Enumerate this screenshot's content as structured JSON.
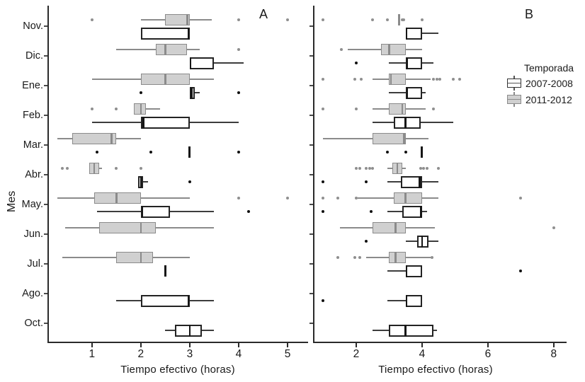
{
  "y_axis_label": "Mes",
  "x_axis_label": "Tiempo efectivo (horas)",
  "legend": {
    "title": "Temporada",
    "items": [
      {
        "label": "2007-2008",
        "fill": "#ffffff",
        "stroke": "#2b2b2b"
      },
      {
        "label": "2011-2012",
        "fill": "#d0d0d0",
        "stroke": "#8b8b8b"
      }
    ]
  },
  "colors": {
    "axis": "#2a2a2a",
    "text": "#1a1a1a",
    "gray_fill": "#d0d0d0",
    "gray_stroke": "#8b8b8b",
    "white_fill": "#ffffff",
    "white_stroke": "#232323"
  },
  "chart_data": [
    {
      "type": "boxplot",
      "orientation": "horizontal",
      "panel_label": "A",
      "xlabel": "Tiempo efectivo (horas)",
      "ylabel": "Mes",
      "x_ticks": [
        1,
        2,
        3,
        4,
        5
      ],
      "xlim": [
        0.09,
        5.42
      ],
      "grid": false,
      "categories": [
        "Nov.",
        "Dic.",
        "Ene.",
        "Feb.",
        "Mar.",
        "Abr.",
        "May.",
        "Jun.",
        "Jul.",
        "Ago.",
        "Oct."
      ],
      "series": [
        {
          "name": "2011-2012",
          "fill": "#d0d0d0",
          "stroke": "#8b8b8b",
          "dot": "#8f8f8f",
          "boxes": [
            {
              "lo": 2.0,
              "q1": 2.5,
              "med": 2.95,
              "q3": 3.0,
              "hi": 3.45,
              "out": [
                1.0,
                4.0,
                5.0
              ]
            },
            {
              "lo": 1.5,
              "q1": 2.3,
              "med": 2.5,
              "q3": 2.95,
              "hi": 3.2,
              "out": [
                4.0
              ]
            },
            {
              "lo": 1.0,
              "q1": 2.0,
              "med": 2.5,
              "q3": 3.0,
              "hi": 3.5,
              "out": []
            },
            {
              "q1": 1.85,
              "med": 2.0,
              "q3": 2.1,
              "hi": 2.4,
              "out": [
                1.0,
                1.5
              ]
            },
            {
              "lo": 0.3,
              "q1": 0.6,
              "med": 1.4,
              "q3": 1.5,
              "hi": 2.0,
              "out": []
            },
            {
              "q1": 0.95,
              "med": 1.05,
              "q3": 1.15,
              "hi": 1.2,
              "out": [
                0.4,
                0.5,
                1.5,
                2.0
              ]
            },
            {
              "lo": 0.3,
              "q1": 1.05,
              "med": 1.5,
              "q3": 2.0,
              "hi": 3.0,
              "out": [
                4.0,
                5.0
              ]
            },
            {
              "lo": 0.45,
              "q1": 1.15,
              "med": 2.0,
              "q3": 2.3,
              "hi": 3.5,
              "out": []
            },
            {
              "lo": 0.4,
              "q1": 1.5,
              "med": 2.0,
              "q3": 2.25,
              "hi": 3.0,
              "out": []
            },
            null,
            null
          ]
        },
        {
          "name": "2007-2008",
          "fill": "#ffffff",
          "stroke": "#232323",
          "dot": "#111111",
          "boxes": [
            {
              "q1": 2.0,
              "med": 2.97,
              "q3": 3.0,
              "out": []
            },
            {
              "q1": 3.0,
              "med": 3.02,
              "q3": 3.5,
              "hi": 4.1,
              "out": []
            },
            {
              "q1": 3.0,
              "med": 3.04,
              "q3": 3.1,
              "hi": 3.2,
              "out": [
                2.0,
                4.0
              ]
            },
            {
              "lo": 1.0,
              "q1": 2.0,
              "med": 2.05,
              "q3": 3.0,
              "hi": 4.0,
              "out": []
            },
            {
              "line": 3.0,
              "out": [
                1.1,
                2.2,
                4.0
              ]
            },
            {
              "q1": 1.95,
              "med": 2.0,
              "q3": 2.05,
              "hi": 2.15,
              "out": [
                3.0
              ]
            },
            {
              "lo": 1.1,
              "q1": 2.0,
              "med": 2.03,
              "q3": 2.6,
              "hi": 3.5,
              "out": [
                4.2
              ]
            },
            null,
            {
              "line": 2.5,
              "out": []
            },
            {
              "lo": 1.5,
              "q1": 2.0,
              "med": 2.97,
              "q3": 3.0,
              "hi": 3.5,
              "out": []
            },
            {
              "lo": 2.5,
              "q1": 2.7,
              "med": 3.0,
              "q3": 3.25,
              "hi": 3.5,
              "out": []
            }
          ]
        }
      ]
    },
    {
      "type": "boxplot",
      "orientation": "horizontal",
      "panel_label": "B",
      "xlabel": "Tiempo efectivo (horas)",
      "ylabel": "Mes",
      "x_ticks": [
        2,
        4,
        6,
        8
      ],
      "xlim": [
        0.69,
        8.39
      ],
      "grid": false,
      "categories": [
        "Nov.",
        "Dic.",
        "Ene.",
        "Feb.",
        "Mar.",
        "Abr.",
        "May.",
        "Jun.",
        "Jul.",
        "Ago.",
        "Oct."
      ],
      "series": [
        {
          "name": "2011-2012",
          "fill": "#d0d0d0",
          "stroke": "#8b8b8b",
          "dot": "#8f8f8f",
          "boxes": [
            {
              "line": 3.3,
              "out": [
                1.0,
                2.5,
                2.95,
                3.4,
                3.45,
                4.0
              ]
            },
            {
              "lo": 1.75,
              "q1": 2.75,
              "med": 3.0,
              "q3": 3.5,
              "hi": 4.0,
              "out": [
                1.55
              ]
            },
            {
              "lo": 2.5,
              "q1": 3.0,
              "med": 3.05,
              "q3": 3.5,
              "hi": 4.25,
              "out": [
                1.0,
                1.95,
                2.15,
                4.35,
                4.45,
                4.55,
                4.95,
                5.15
              ]
            },
            {
              "lo": 2.5,
              "q1": 3.0,
              "med": 3.4,
              "q3": 3.5,
              "hi": 4.1,
              "out": [
                1.0,
                2.0,
                4.35
              ]
            },
            {
              "lo": 1.0,
              "q1": 2.5,
              "med": 3.45,
              "q3": 3.5,
              "hi": 4.2,
              "out": []
            },
            {
              "lo": 2.95,
              "q1": 3.1,
              "med": 3.25,
              "q3": 3.4,
              "hi": 3.5,
              "out": [
                2.0,
                2.1,
                2.3,
                2.4,
                2.5,
                3.95,
                4.05,
                4.15,
                4.5
              ]
            },
            {
              "lo": 2.05,
              "q1": 3.15,
              "med": 3.5,
              "q3": 4.0,
              "hi": 4.5,
              "out": [
                1.0,
                1.45,
                2.0,
                7.0
              ]
            },
            {
              "lo": 1.5,
              "q1": 2.5,
              "med": 3.2,
              "q3": 3.5,
              "hi": 4.4,
              "out": [
                8.0
              ]
            },
            {
              "lo": 2.3,
              "q1": 3.0,
              "med": 3.2,
              "q3": 3.5,
              "hi": 4.25,
              "out": [
                1.45,
                1.95,
                2.1,
                4.3
              ]
            },
            null,
            null
          ]
        },
        {
          "name": "2007-2008",
          "fill": "#ffffff",
          "stroke": "#232323",
          "dot": "#111111",
          "boxes": [
            {
              "q1": 3.5,
              "med": 3.53,
              "q3": 4.0,
              "hi": 4.5,
              "out": []
            },
            {
              "lo": 3.0,
              "q1": 3.5,
              "med": 3.55,
              "q3": 4.0,
              "hi": 4.35,
              "out": [
                2.0
              ]
            },
            {
              "lo": 3.0,
              "q1": 3.5,
              "med": 3.55,
              "q3": 4.0,
              "hi": 4.1,
              "out": []
            },
            {
              "lo": 2.5,
              "q1": 3.15,
              "med": 3.5,
              "q3": 3.95,
              "hi": 4.95,
              "out": []
            },
            {
              "line": 4.0,
              "out": [
                2.95,
                3.5
              ]
            },
            {
              "lo": 2.95,
              "q1": 3.35,
              "med": 3.93,
              "q3": 4.0,
              "hi": 4.5,
              "out": [
                1.0,
                2.3
              ]
            },
            {
              "lo": 2.95,
              "q1": 3.4,
              "med": 3.97,
              "q3": 4.0,
              "hi": 4.15,
              "out": [
                1.0,
                2.45
              ]
            },
            {
              "lo": 3.5,
              "q1": 3.85,
              "med": 4.0,
              "q3": 4.2,
              "hi": 4.5,
              "out": [
                2.3
              ]
            },
            {
              "lo": 2.95,
              "q1": 3.5,
              "med": 3.53,
              "q3": 4.0,
              "out": [
                7.0
              ]
            },
            {
              "lo": 2.95,
              "q1": 3.5,
              "med": 3.53,
              "q3": 4.0,
              "out": [
                1.0
              ]
            },
            {
              "lo": 2.5,
              "q1": 3.0,
              "med": 3.5,
              "q3": 4.35,
              "hi": 4.45,
              "out": []
            }
          ]
        }
      ]
    }
  ]
}
